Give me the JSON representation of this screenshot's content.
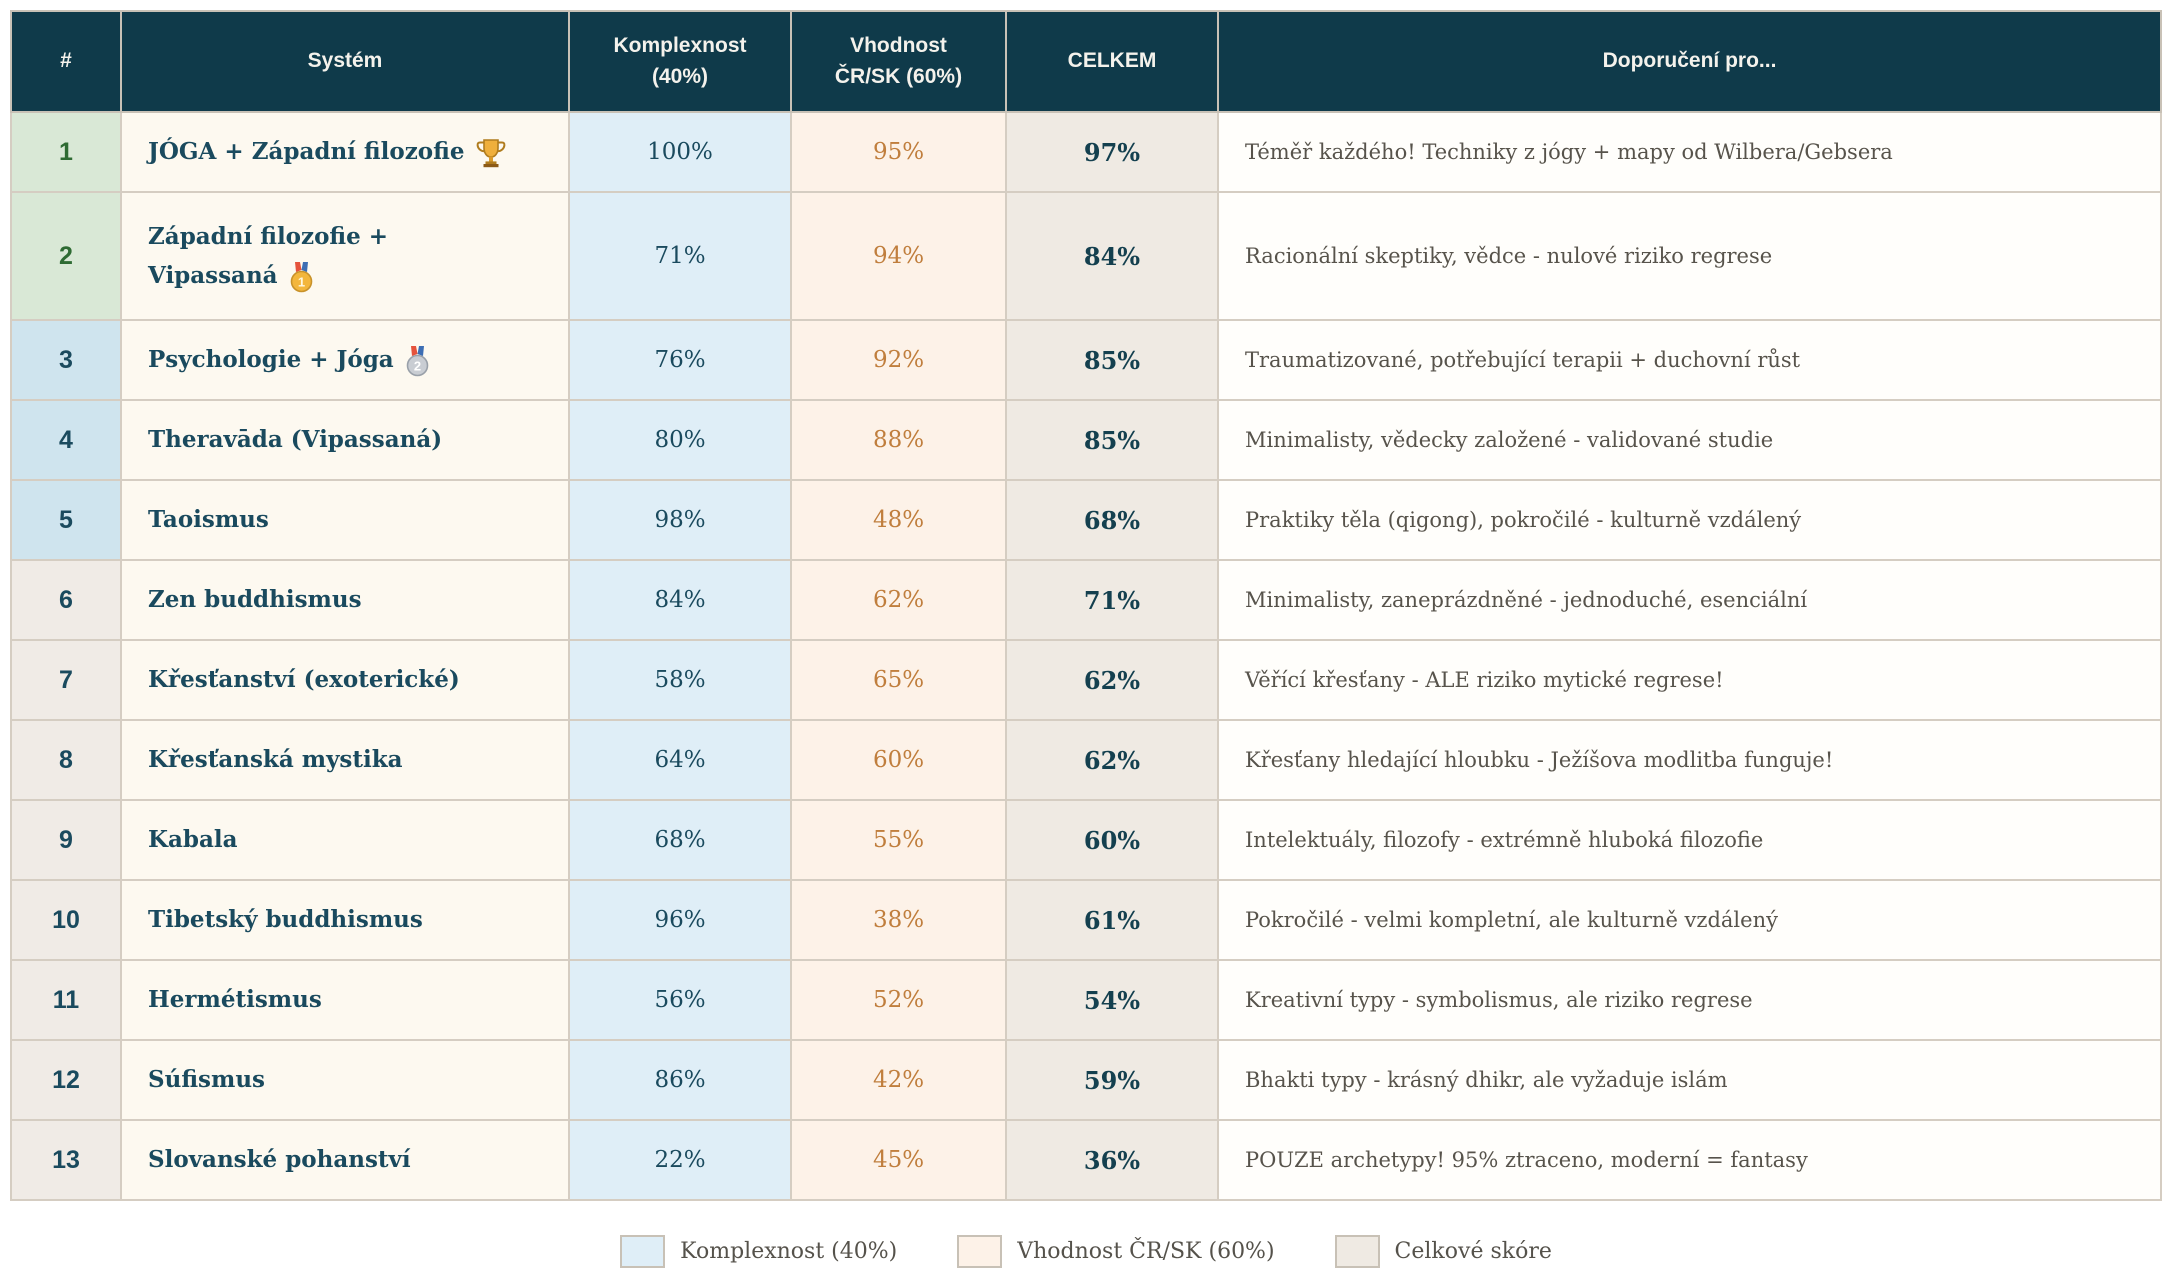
{
  "colors": {
    "header_bg": "#0f3a4a",
    "header_text": "#f4f2ec",
    "rank_top_green_bg": "#d9e8d6",
    "rank_top_green_text": "#2e6b33",
    "rank_mid_blue_bg": "#cfe4ee",
    "rank_neutral_bg": "#f0ebe6",
    "system_cell_bg": "#fdf9f0",
    "komplexnost_cell_bg": "#dfeef7",
    "vhodnost_cell_bg": "#fdf2e8",
    "celkem_cell_bg": "#efeae3",
    "dark_teal_text": "#1a4a5e",
    "orange_text": "#c07e3d",
    "recommendation_text": "#57534b",
    "grid_border": "#d5cdc2"
  },
  "table": {
    "columns": [
      {
        "key": "rank",
        "label": "#"
      },
      {
        "key": "system",
        "label": "Systém"
      },
      {
        "key": "komplexnost",
        "label": "Komplexnost\n(40%)"
      },
      {
        "key": "vhodnost",
        "label": "Vhodnost\nČR/SK (60%)"
      },
      {
        "key": "celkem",
        "label": "CELKEM"
      },
      {
        "key": "doporuceni",
        "label": "Doporučení pro..."
      }
    ],
    "rows": [
      {
        "rank": "1",
        "system": "JÓGA + Západní filozofie",
        "badge": "trophy-icon",
        "komplexnost": "100%",
        "vhodnost": "95%",
        "celkem": "97%",
        "doporuceni": "Téměř každého! Techniky z jógy + mapy od Wilbera/Gebsera",
        "rank_style": "green"
      },
      {
        "rank": "2",
        "system": "Západní filozofie +\nVipassaná",
        "badge": "gold-medal-icon",
        "komplexnost": "71%",
        "vhodnost": "94%",
        "celkem": "84%",
        "doporuceni": "Racionální skeptiky, vědce - nulové riziko regrese",
        "rank_style": "green"
      },
      {
        "rank": "3",
        "system": "Psychologie + Jóga",
        "badge": "silver-medal-icon",
        "komplexnost": "76%",
        "vhodnost": "92%",
        "celkem": "85%",
        "doporuceni": "Traumatizované, potřebující terapii + duchovní růst",
        "rank_style": "blue"
      },
      {
        "rank": "4",
        "system": "Theravāda (Vipassaná)",
        "badge": null,
        "komplexnost": "80%",
        "vhodnost": "88%",
        "celkem": "85%",
        "doporuceni": "Minimalisty, vědecky založené - validované studie",
        "rank_style": "blue"
      },
      {
        "rank": "5",
        "system": "Taoismus",
        "badge": null,
        "komplexnost": "98%",
        "vhodnost": "48%",
        "celkem": "68%",
        "doporuceni": "Praktiky těla (qigong), pokročilé - kulturně vzdálený",
        "rank_style": "blue"
      },
      {
        "rank": "6",
        "system": "Zen buddhismus",
        "badge": null,
        "komplexnost": "84%",
        "vhodnost": "62%",
        "celkem": "71%",
        "doporuceni": "Minimalisty, zaneprázdněné - jednoduché, esenciální",
        "rank_style": "neutral"
      },
      {
        "rank": "7",
        "system": "Křesťanství (exoterické)",
        "badge": null,
        "komplexnost": "58%",
        "vhodnost": "65%",
        "celkem": "62%",
        "doporuceni": "Věřící křesťany - ALE riziko mytické regrese!",
        "rank_style": "neutral"
      },
      {
        "rank": "8",
        "system": "Křesťanská mystika",
        "badge": null,
        "komplexnost": "64%",
        "vhodnost": "60%",
        "celkem": "62%",
        "doporuceni": "Křesťany hledající hloubku - Ježíšova modlitba funguje!",
        "rank_style": "neutral"
      },
      {
        "rank": "9",
        "system": "Kabala",
        "badge": null,
        "komplexnost": "68%",
        "vhodnost": "55%",
        "celkem": "60%",
        "doporuceni": "Intelektuály, filozofy - extrémně hluboká filozofie",
        "rank_style": "neutral"
      },
      {
        "rank": "10",
        "system": "Tibetský buddhismus",
        "badge": null,
        "komplexnost": "96%",
        "vhodnost": "38%",
        "celkem": "61%",
        "doporuceni": "Pokročilé - velmi kompletní, ale kulturně vzdálený",
        "rank_style": "neutral"
      },
      {
        "rank": "11",
        "system": "Hermétismus",
        "badge": null,
        "komplexnost": "56%",
        "vhodnost": "52%",
        "celkem": "54%",
        "doporuceni": "Kreativní typy - symbolismus, ale riziko regrese",
        "rank_style": "neutral"
      },
      {
        "rank": "12",
        "system": "Súfismus",
        "badge": null,
        "komplexnost": "86%",
        "vhodnost": "42%",
        "celkem": "59%",
        "doporuceni": "Bhakti typy - krásný dhikr, ale vyžaduje islám",
        "rank_style": "neutral"
      },
      {
        "rank": "13",
        "system": "Slovanské pohanství",
        "badge": null,
        "komplexnost": "22%",
        "vhodnost": "45%",
        "celkem": "36%",
        "doporuceni": "POUZE archetypy! 95% ztraceno, moderní = fantasy",
        "rank_style": "neutral"
      }
    ]
  },
  "legend": {
    "items": [
      {
        "label": "Komplexnost (40%)",
        "color": "#dfeef7"
      },
      {
        "label": "Vhodnost ČR/SK (60%)",
        "color": "#fdf2e8"
      },
      {
        "label": "Celkové skóre",
        "color": "#efeae3"
      }
    ]
  }
}
